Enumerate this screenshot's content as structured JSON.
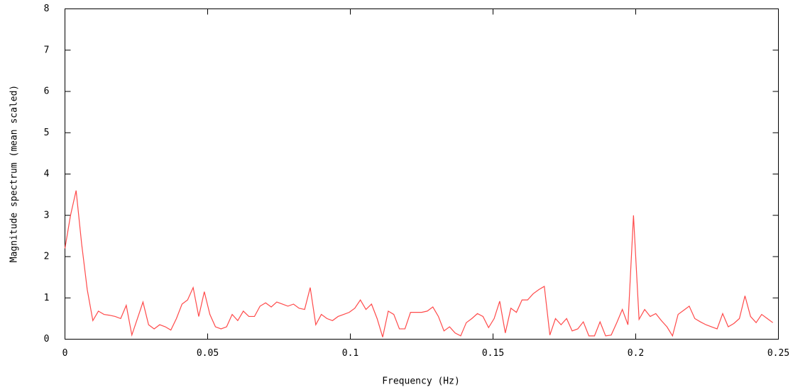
{
  "chart_data": {
    "type": "line",
    "xlabel": "Frequency (Hz)",
    "ylabel": "Magnitude spectrum (mean scaled)",
    "xlim": [
      0,
      0.25
    ],
    "ylim": [
      0,
      8
    ],
    "xticks": [
      0,
      0.05,
      0.1,
      0.15,
      0.2,
      0.25
    ],
    "yticks": [
      0,
      1,
      2,
      3,
      4,
      5,
      6,
      7,
      8
    ],
    "grid": false,
    "x": [
      0,
      0.00195,
      0.00391,
      0.00586,
      0.00781,
      0.00977,
      0.01172,
      0.01367,
      0.01563,
      0.01758,
      0.01953,
      0.02148,
      0.02344,
      0.02539,
      0.02734,
      0.0293,
      0.03125,
      0.0332,
      0.03516,
      0.03711,
      0.03906,
      0.04102,
      0.04297,
      0.04492,
      0.04688,
      0.04883,
      0.05078,
      0.05273,
      0.05469,
      0.05664,
      0.05859,
      0.06055,
      0.0625,
      0.06445,
      0.06641,
      0.06836,
      0.07031,
      0.07227,
      0.07422,
      0.07617,
      0.07813,
      0.08008,
      0.08203,
      0.08398,
      0.08594,
      0.08789,
      0.08984,
      0.0918,
      0.09375,
      0.0957,
      0.09766,
      0.09961,
      0.10156,
      0.10352,
      0.10547,
      0.10742,
      0.10938,
      0.11133,
      0.11328,
      0.11523,
      0.11719,
      0.11914,
      0.12109,
      0.12305,
      0.125,
      0.12695,
      0.12891,
      0.13086,
      0.13281,
      0.13477,
      0.13672,
      0.13867,
      0.14063,
      0.14258,
      0.14453,
      0.14648,
      0.14844,
      0.15039,
      0.15234,
      0.1543,
      0.15625,
      0.1582,
      0.16016,
      0.16211,
      0.16406,
      0.16602,
      0.16797,
      0.16992,
      0.17188,
      0.17383,
      0.17578,
      0.17773,
      0.17969,
      0.18164,
      0.18359,
      0.18555,
      0.1875,
      0.18945,
      0.19141,
      0.19336,
      0.19531,
      0.19727,
      0.19922,
      0.20117,
      0.20313,
      0.20508,
      0.20703,
      0.20898,
      0.21094,
      0.21289,
      0.21484,
      0.2168,
      0.21875,
      0.2207,
      0.22266,
      0.22461,
      0.22656,
      0.22852,
      0.23047,
      0.23242,
      0.23438,
      0.23633,
      0.23828,
      0.24023,
      0.24219,
      0.24414,
      0.24609,
      0.24805
    ],
    "series": [
      {
        "color": "#ff4a4a",
        "values": [
          2.2,
          3.0,
          3.6,
          2.3,
          1.2,
          0.45,
          0.68,
          0.6,
          0.58,
          0.55,
          0.5,
          0.82,
          0.1,
          0.5,
          0.9,
          0.35,
          0.25,
          0.35,
          0.3,
          0.22,
          0.5,
          0.85,
          0.95,
          1.25,
          0.55,
          1.15,
          0.6,
          0.3,
          0.25,
          0.3,
          0.6,
          0.45,
          0.68,
          0.55,
          0.55,
          0.8,
          0.88,
          0.78,
          0.9,
          0.85,
          0.8,
          0.85,
          0.75,
          0.72,
          1.25,
          0.35,
          0.6,
          0.5,
          0.45,
          0.55,
          0.6,
          0.65,
          0.75,
          0.95,
          0.72,
          0.85,
          0.5,
          0.05,
          0.68,
          0.6,
          0.25,
          0.25,
          0.65,
          0.65,
          0.65,
          0.68,
          0.78,
          0.55,
          0.2,
          0.3,
          0.15,
          0.08,
          0.4,
          0.5,
          0.62,
          0.55,
          0.28,
          0.5,
          0.92,
          0.15,
          0.75,
          0.65,
          0.95,
          0.95,
          1.1,
          1.2,
          1.28,
          0.1,
          0.5,
          0.35,
          0.5,
          0.2,
          0.25,
          0.42,
          0.08,
          0.08,
          0.42,
          0.08,
          0.1,
          0.4,
          0.72,
          0.35,
          3.0,
          0.48,
          0.72,
          0.55,
          0.62,
          0.45,
          0.3,
          0.08,
          0.6,
          0.7,
          0.8,
          0.5,
          0.42,
          0.35,
          0.3,
          0.25,
          0.62,
          0.3,
          0.38,
          0.5,
          1.05,
          0.55,
          0.4,
          0.6,
          0.5,
          0.4
        ]
      }
    ]
  }
}
